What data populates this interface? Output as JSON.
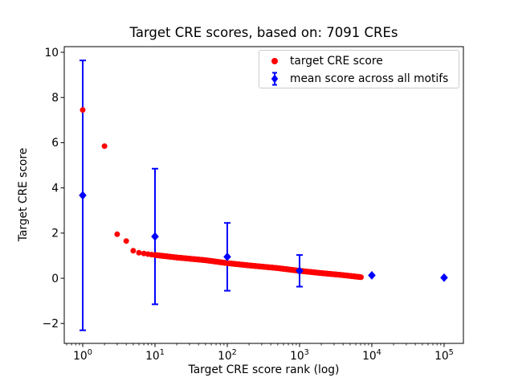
{
  "chart_data": {
    "type": "scatter",
    "title": "Target CRE scores, based on: 7091 CREs",
    "xlabel": "Target CRE score rank (log)",
    "ylabel": "Target CRE score",
    "xscale": "log",
    "xlim": [
      0.555,
      185000
    ],
    "ylim": [
      -2.88,
      10.25
    ],
    "xticks": [
      1,
      10,
      100,
      1000,
      10000,
      100000
    ],
    "xtick_labels": [
      "10⁰",
      "10¹",
      "10²",
      "10³",
      "10⁴",
      "10⁵"
    ],
    "yticks": [
      -2,
      0,
      2,
      4,
      6,
      8,
      10
    ],
    "ytick_labels": [
      "−2",
      "0",
      "2",
      "4",
      "6",
      "8",
      "10"
    ],
    "grid": false,
    "legend_position": "upper right",
    "n_cres": 7091,
    "series": [
      {
        "name": "target CRE score",
        "marker": "circle",
        "color": "#ff0000",
        "n_points": 7091,
        "anchors": [
          [
            1,
            7.45
          ],
          [
            2,
            5.85
          ],
          [
            3,
            1.95
          ],
          [
            4,
            1.65
          ],
          [
            5,
            1.22
          ],
          [
            6,
            1.13
          ],
          [
            8,
            1.07
          ],
          [
            10,
            1.03
          ],
          [
            20,
            0.92
          ],
          [
            50,
            0.8
          ],
          [
            100,
            0.67
          ],
          [
            200,
            0.57
          ],
          [
            500,
            0.45
          ],
          [
            1000,
            0.33
          ],
          [
            2000,
            0.23
          ],
          [
            4000,
            0.14
          ],
          [
            7091,
            0.05
          ]
        ]
      },
      {
        "name": "mean score across all motifs",
        "marker": "diamond",
        "color": "#0000ff",
        "points": [
          {
            "x": 1,
            "y": 3.67,
            "yerr": 5.97
          },
          {
            "x": 10,
            "y": 1.85,
            "yerr": 3.0
          },
          {
            "x": 100,
            "y": 0.95,
            "yerr": 1.5
          },
          {
            "x": 1000,
            "y": 0.33,
            "yerr": 0.7
          },
          {
            "x": 10000,
            "y": 0.13,
            "yerr": 0
          },
          {
            "x": 100000,
            "y": 0.03,
            "yerr": 0
          }
        ]
      }
    ]
  }
}
